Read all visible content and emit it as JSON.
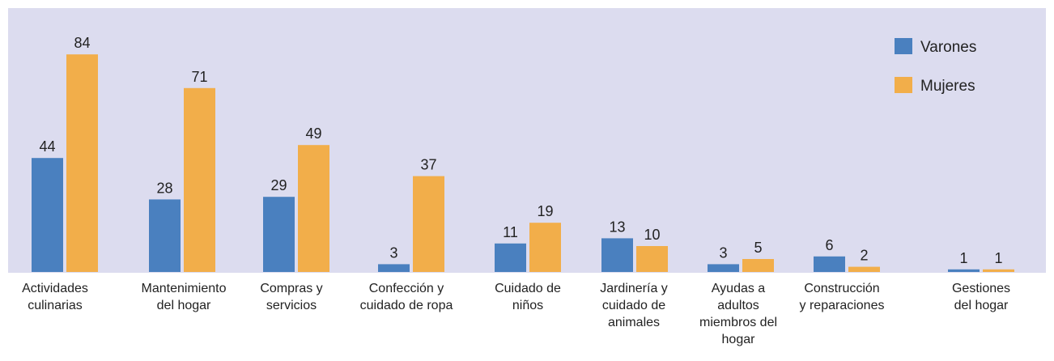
{
  "chart_data": {
    "type": "bar",
    "categories": [
      "Actividades culinarias",
      "Mantenimiento del hogar",
      "Compras y servicios",
      "Confección y cuidado de ropa",
      "Cuidado de niños",
      "Jardinería y cuidado de animales",
      "Ayudas a adultos miembros del hogar",
      "Construcción y reparaciones",
      "Gestiones del hogar"
    ],
    "series": [
      {
        "name": "Varones",
        "color": "#4a80bf",
        "values": [
          44,
          28,
          29,
          3,
          11,
          13,
          3,
          6,
          1
        ]
      },
      {
        "name": "Mujeres",
        "color": "#f2ae4a",
        "values": [
          84,
          71,
          49,
          37,
          19,
          10,
          5,
          2,
          1
        ]
      }
    ],
    "legend": "top-right"
  }
}
